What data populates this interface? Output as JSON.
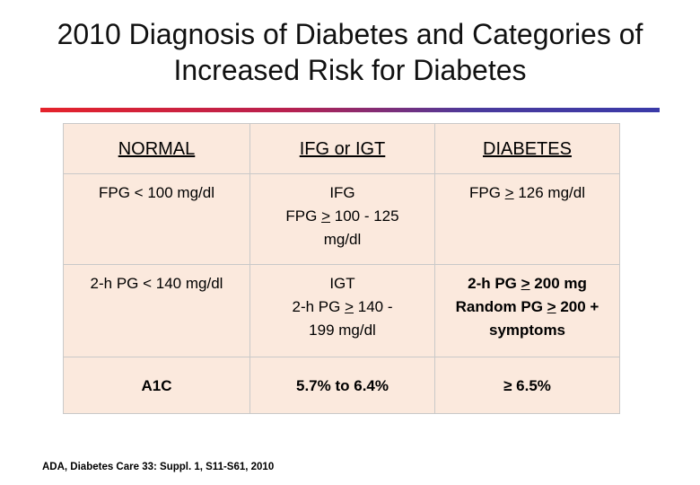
{
  "title": {
    "line1": "2010 Diagnosis of Diabetes and Categories of",
    "line2": "Increased Risk for Diabetes"
  },
  "table": {
    "headers": [
      "NORMAL",
      "IFG or IGT",
      "DIABETES"
    ],
    "fpg_row": {
      "normal": "FPG < 100 mg/dl",
      "ifg_label": "IFG",
      "ifg_prefix": "FPG ",
      "ifg_symbol": ">",
      "ifg_suffix": " 100 - 125",
      "ifg_unit": "mg/dl",
      "diabetes_prefix": "FPG ",
      "diabetes_symbol": ">",
      "diabetes_suffix": " 126 mg/dl"
    },
    "pg_row": {
      "normal": "2-h PG < 140 mg/dl",
      "igt_label": "IGT",
      "igt_prefix": "2-h PG ",
      "igt_symbol": ">",
      "igt_suffix": " 140 -",
      "igt_unit": "199 mg/dl",
      "diabetes1_prefix": "2-h PG ",
      "diabetes1_symbol": ">",
      "diabetes1_suffix": " 200 mg",
      "diabetes2_prefix": "Random PG ",
      "diabetes2_symbol": ">",
      "diabetes2_suffix": " 200 +",
      "diabetes3": "symptoms"
    },
    "a1c_row": {
      "normal": "A1C",
      "ifg": "5.7% to 6.4%",
      "diabetes": "≥ 6.5%"
    }
  },
  "citation": "ADA, Diabetes Care 33: Suppl. 1, S11-S61, 2010",
  "colors": {
    "table_fill": "#fbe9dd",
    "divider_start": "#e5232b",
    "divider_end": "#3a3aa8"
  }
}
